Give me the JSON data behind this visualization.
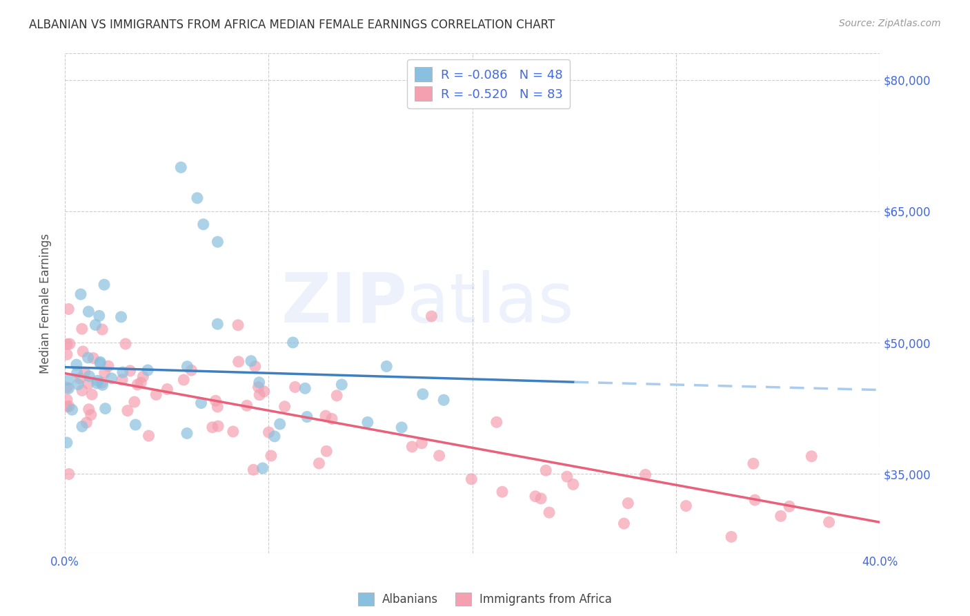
{
  "title": "ALBANIAN VS IMMIGRANTS FROM AFRICA MEDIAN FEMALE EARNINGS CORRELATION CHART",
  "source": "Source: ZipAtlas.com",
  "ylabel": "Median Female Earnings",
  "xlim": [
    0.0,
    0.4
  ],
  "ylim": [
    26000,
    83000
  ],
  "yticks": [
    35000,
    50000,
    65000,
    80000
  ],
  "ytick_labels": [
    "$35,000",
    "$50,000",
    "$65,000",
    "$80,000"
  ],
  "xticks": [
    0.0,
    0.1,
    0.2,
    0.3,
    0.4
  ],
  "xtick_labels": [
    "0.0%",
    "",
    "",
    "",
    "40.0%"
  ],
  "legend_label1": "R = -0.086   N = 48",
  "legend_label2": "R = -0.520   N = 83",
  "color_albanian": "#89bfdf",
  "color_africa": "#f4a0b0",
  "color_trend_albanian": "#3d7fbf",
  "color_trend_africa": "#e8607a",
  "color_trend_albanian_ext": "#aaccee",
  "color_blue_text": "#4169E1",
  "color_title": "#333333",
  "color_source": "#999999",
  "background_color": "#ffffff",
  "watermark_zip": "ZIP",
  "watermark_atlas": "atlas",
  "bottom_label1": "Albanians",
  "bottom_label2": "Immigrants from Africa",
  "trend_alb_x0": 0.0,
  "trend_alb_y0": 47200,
  "trend_alb_x1": 0.25,
  "trend_alb_y1": 45500,
  "trend_alb_ext_x1": 0.4,
  "trend_alb_ext_y1": 44600,
  "trend_afr_x0": 0.0,
  "trend_afr_y0": 46500,
  "trend_afr_x1": 0.4,
  "trend_afr_y1": 29500
}
